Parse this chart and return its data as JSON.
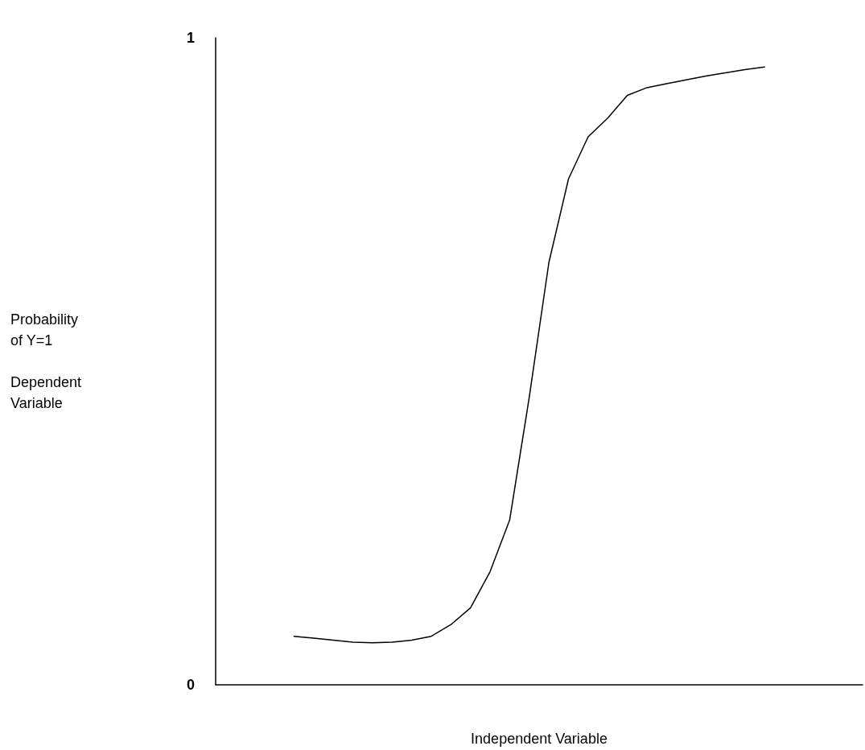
{
  "chart_data": {
    "type": "line",
    "xlabel": "Independent Variable",
    "ylabel": "Probability\nof Y=1\n\nDependent\nVariable",
    "categories": [
      null,
      null,
      null,
      null,
      null,
      null,
      null,
      null,
      null,
      null,
      null,
      null,
      null,
      null,
      null,
      null,
      null,
      null,
      null,
      null,
      null,
      null,
      null,
      null,
      null,
      null,
      null,
      null,
      null,
      null,
      null,
      null,
      null,
      null
    ],
    "series": [
      {
        "color": "#000000",
        "values": [
          null,
          null,
          null,
          null,
          0.075,
          0.072,
          0.069,
          0.066,
          0.065,
          0.066,
          0.069,
          0.075,
          0.093,
          0.119,
          0.175,
          0.255,
          0.445,
          0.653,
          0.782,
          0.847,
          0.876,
          0.911,
          0.923,
          0.929,
          0.935,
          0.941,
          0.946,
          0.951,
          0.955,
          null,
          null,
          null,
          null,
          null
        ]
      }
    ],
    "ylim": [
      0,
      1
    ],
    "yticks": [
      0,
      1
    ],
    "grid": false,
    "marker": "none",
    "line_style": "solid"
  }
}
